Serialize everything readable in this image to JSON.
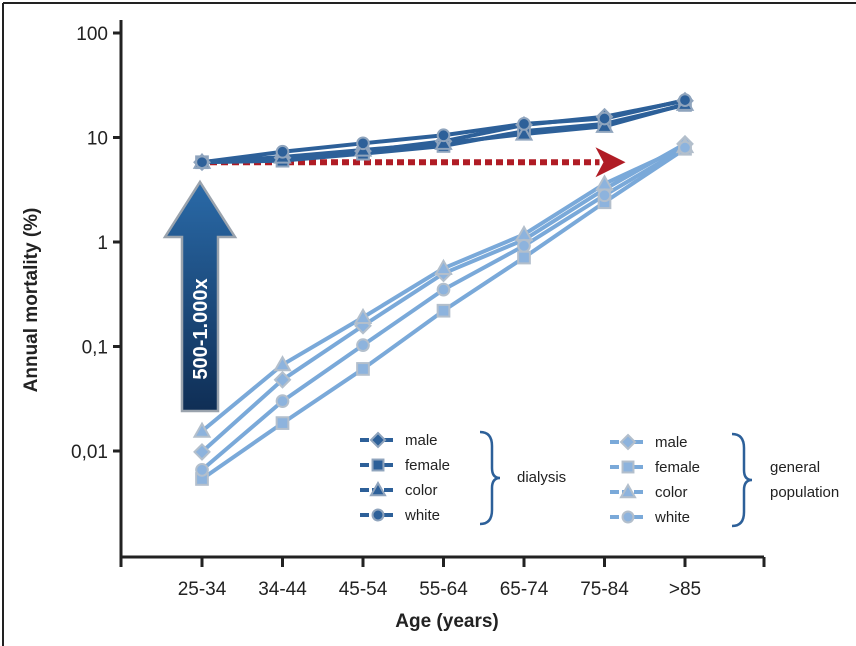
{
  "chart_data": {
    "type": "line",
    "xlabel": "Age (years)",
    "ylabel": "Annual mortality (%)",
    "yscale": "log",
    "ylim": [
      0.001,
      100
    ],
    "y_ticks": [
      100,
      10,
      1,
      0.1,
      0.01
    ],
    "y_tick_labels": [
      "100",
      "10",
      "1",
      "0,1",
      "0,01"
    ],
    "categories": [
      "25-34",
      "34-44",
      "45-54",
      "55-64",
      "65-74",
      "75-84",
      ">85"
    ],
    "groups": [
      {
        "label": "dialysis",
        "color": "#2d6099",
        "series": [
          {
            "name": "male",
            "marker": "diamond",
            "values": [
              5.8,
              6.4,
              7.4,
              9.2,
              13.2,
              15.8,
              22.5
            ]
          },
          {
            "name": "female",
            "marker": "square",
            "values": [
              5.8,
              6.0,
              7.0,
              8.3,
              11.5,
              13.5,
              20.5
            ]
          },
          {
            "name": "color",
            "marker": "triangle",
            "values": [
              5.8,
              6.5,
              7.6,
              8.8,
              10.8,
              12.8,
              20.8
            ]
          },
          {
            "name": "white",
            "marker": "circle",
            "values": [
              5.8,
              7.3,
              8.8,
              10.5,
              13.5,
              15.2,
              22.8
            ]
          }
        ]
      },
      {
        "label": "general\npopulation",
        "label_lines": [
          "general",
          "population"
        ],
        "color": "#7aa9d9",
        "series": [
          {
            "name": "male",
            "marker": "diamond",
            "values": [
              0.0098,
              0.048,
              0.158,
              0.5,
              1.05,
              3.2,
              8.7
            ]
          },
          {
            "name": "female",
            "marker": "square",
            "values": [
              0.0054,
              0.0185,
              0.061,
              0.22,
              0.71,
              2.4,
              7.8
            ]
          },
          {
            "name": "color",
            "marker": "triangle",
            "values": [
              0.0155,
              0.067,
              0.19,
              0.56,
              1.18,
              3.6,
              8.2
            ]
          },
          {
            "name": "white",
            "marker": "circle",
            "values": [
              0.0066,
              0.03,
              0.103,
              0.35,
              0.92,
              2.8,
              8.0
            ]
          }
        ]
      }
    ],
    "annotations": {
      "big_arrow_label": "500-1.000x",
      "big_arrow_color": "#1b4f80",
      "dashed_arrow_color": "#b01c25",
      "dashed_arrow_y": 5.8,
      "dashed_arrow_x_from": "25-34",
      "dashed_arrow_x_to": "75-84"
    },
    "grid": false,
    "legend_position": "bottom-center"
  }
}
